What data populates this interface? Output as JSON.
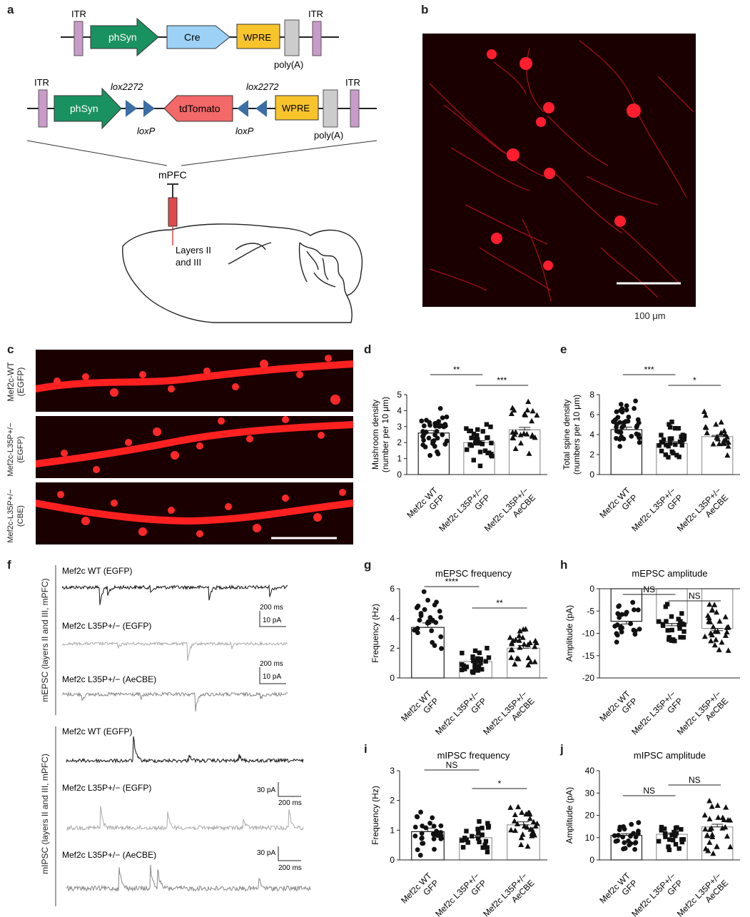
{
  "panel_labels": {
    "a": "a",
    "b": "b",
    "c": "c",
    "d": "d",
    "e": "e",
    "f": "f",
    "g": "g",
    "h": "h",
    "i": "i",
    "j": "j"
  },
  "construct1": {
    "itr_left": "ITR",
    "itr_right": "ITR",
    "promoter": "phSyn",
    "gene": "Cre",
    "wpre": "WPRE",
    "polya": "poly(A)"
  },
  "construct2": {
    "itr_left": "ITR",
    "itr_right": "ITR",
    "promoter": "phSyn",
    "lox2272_left": "lox2272",
    "lox2272_right": "lox2272",
    "gene": "tdTomato",
    "loxp_left": "loxP",
    "loxp_right": "loxP",
    "wpre": "WPRE",
    "polya": "poly(A)"
  },
  "injection": {
    "region": "mPFC",
    "layers_line1": "Layers II",
    "layers_line2": "and III"
  },
  "micrograph_b": {
    "scale_bar": "100 μm"
  },
  "panel_c": {
    "row1": [
      "Mef2c-WT",
      "(EGFP)"
    ],
    "row2": [
      "Mef2c-L35P+/−",
      "(EGFP)"
    ],
    "row3": [
      "Mef2c-L35P+/−",
      "(CBE)"
    ]
  },
  "panel_f": {
    "mepsc_axis": "mEPSC (layers II and III, mPFC)",
    "mipsc_axis": "mIPSC (layers II and III, mPFC)",
    "t1": "Mef2c WT (EGFP)",
    "t2": "Mef2c L35P+/− (EGFP)",
    "t3": "Mef2c L35P+/− (AeCBE)",
    "t4": "Mef2c WT (EGFP)",
    "t5": "Mef2c L35P+/− (EGFP)",
    "t6": "Mef2c L35P+/− (AeCBE)",
    "sb_time": "200 ms",
    "sb_amp_e": "10 pA",
    "sb_amp_i": "30 pA"
  },
  "groups": [
    "Mef2c WT GFP",
    "Mef2c L35P+/− GFP",
    "Mef2c L35P+/− AeCBE"
  ],
  "chart_data": [
    {
      "id": "d",
      "type": "bar",
      "title": "",
      "ylabel": "Mushroom density (number per 10 μm)",
      "ylim": [
        0,
        5
      ],
      "yticks": [
        0,
        1,
        2,
        3,
        4,
        5
      ],
      "categories": [
        "Mef2c WT GFP",
        "Mef2c L35P+/− GFP",
        "Mef2c L35P+/− AeCBE"
      ],
      "values": [
        2.6,
        2.0,
        2.8
      ],
      "sem": [
        0.15,
        0.12,
        0.15
      ],
      "markers": [
        "circle",
        "square",
        "triangle"
      ],
      "sig": [
        {
          "from": 0,
          "to": 1,
          "label": "**"
        },
        {
          "from": 1,
          "to": 2,
          "label": "***"
        }
      ],
      "n": [
        40,
        30,
        24
      ]
    },
    {
      "id": "e",
      "type": "bar",
      "title": "",
      "ylabel": "Total spine density (numbers per 10 μm)",
      "ylim": [
        0,
        8
      ],
      "yticks": [
        0,
        2,
        4,
        6,
        8
      ],
      "categories": [
        "Mef2c WT GFP",
        "Mef2c L35P+/− GFP",
        "Mef2c L35P+/− AeCBE"
      ],
      "values": [
        4.5,
        3.1,
        3.8
      ],
      "sem": [
        0.25,
        0.2,
        0.12
      ],
      "markers": [
        "circle",
        "square",
        "triangle"
      ],
      "sig": [
        {
          "from": 0,
          "to": 1,
          "label": "***"
        },
        {
          "from": 1,
          "to": 2,
          "label": "*"
        }
      ],
      "n": [
        40,
        30,
        24
      ]
    },
    {
      "id": "g",
      "type": "bar",
      "title": "mEPSC frequency",
      "ylabel": "Frequency (Hz)",
      "ylim": [
        0,
        6
      ],
      "yticks": [
        0,
        2,
        4,
        6
      ],
      "categories": [
        "Mef2c WT GFP",
        "Mef2c L35P+/− GFP",
        "Mef2c L35P+/− AeCBE"
      ],
      "values": [
        3.4,
        1.1,
        2.0
      ],
      "sem": [
        0.3,
        0.15,
        0.18
      ],
      "markers": [
        "circle",
        "square",
        "triangle"
      ],
      "sig": [
        {
          "from": 0,
          "to": 1,
          "label": "****"
        },
        {
          "from": 1,
          "to": 2,
          "label": "**"
        }
      ],
      "n": [
        26,
        26,
        28
      ]
    },
    {
      "id": "h",
      "type": "bar",
      "title": "mEPSC amplitude",
      "ylabel": "Amplitude (pA)",
      "ylim": [
        -20,
        0
      ],
      "yticks": [
        0,
        -5,
        -10,
        -15,
        -20
      ],
      "categories": [
        "Mef2c WT GFP",
        "Mef2c L35P+/− GFP",
        "Mef2c L35P+/− AeCBE"
      ],
      "values": [
        -7.3,
        -7.8,
        -8.9
      ],
      "sem": [
        0.6,
        0.5,
        0.5
      ],
      "markers": [
        "circle",
        "square",
        "triangle"
      ],
      "sig": [
        {
          "from": 0,
          "to": 1,
          "label": "NS"
        },
        {
          "from": 1,
          "to": 2,
          "label": "NS"
        }
      ],
      "n": [
        24,
        24,
        28
      ]
    },
    {
      "id": "i",
      "type": "bar",
      "title": "mIPSC frequency",
      "ylabel": "Frequency (Hz)",
      "ylim": [
        0,
        3
      ],
      "yticks": [
        0,
        1,
        2,
        3
      ],
      "categories": [
        "Mef2c WT GFP",
        "Mef2c L35P+/− GFP",
        "Mef2c L35P+/− AeCBE"
      ],
      "values": [
        0.95,
        0.75,
        1.18
      ],
      "sem": [
        0.12,
        0.08,
        0.1
      ],
      "markers": [
        "circle",
        "square",
        "triangle"
      ],
      "sig": [
        {
          "from": 0,
          "to": 1,
          "label": "NS"
        },
        {
          "from": 1,
          "to": 2,
          "label": "*"
        }
      ],
      "n": [
        28,
        22,
        28
      ]
    },
    {
      "id": "j",
      "type": "bar",
      "title": "mIPSC amplitude",
      "ylabel": "Amplitude (pA)",
      "ylim": [
        0,
        40
      ],
      "yticks": [
        0,
        10,
        20,
        30,
        40
      ],
      "categories": [
        "Mef2c WT GFP",
        "Mef2c L35P+/− GFP",
        "Mef2c L35P+/− AeCBE"
      ],
      "values": [
        11,
        11.5,
        14.8
      ],
      "sem": [
        0.8,
        0.6,
        1.2
      ],
      "markers": [
        "circle",
        "square",
        "triangle"
      ],
      "sig": [
        {
          "from": 0,
          "to": 1,
          "label": "NS"
        },
        {
          "from": 1,
          "to": 2,
          "label": "NS"
        }
      ],
      "n": [
        26,
        22,
        28
      ]
    }
  ]
}
